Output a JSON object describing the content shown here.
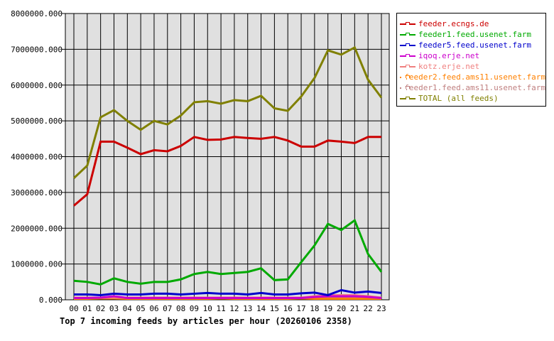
{
  "chart_data": {
    "type": "line",
    "title": "Top 7 incoming feeds by articles per hour (20260106 2358)",
    "categories": [
      "00",
      "01",
      "02",
      "03",
      "04",
      "05",
      "06",
      "07",
      "08",
      "09",
      "10",
      "11",
      "12",
      "13",
      "14",
      "15",
      "16",
      "17",
      "18",
      "19",
      "20",
      "21",
      "22",
      "23"
    ],
    "ylim": [
      0,
      8000000
    ],
    "yticks": [
      "0.000",
      "1000000.000",
      "2000000.000",
      "3000000.000",
      "4000000.000",
      "5000000.000",
      "6000000.000",
      "7000000.000",
      "8000000.000"
    ],
    "grid": true,
    "legend": "right",
    "series": [
      {
        "name": "feeder.ecngs.de",
        "color": "#cc0000",
        "values": [
          2630000,
          2950000,
          4420000,
          4420000,
          4250000,
          4070000,
          4180000,
          4150000,
          4300000,
          4550000,
          4470000,
          4480000,
          4550000,
          4520000,
          4500000,
          4550000,
          4450000,
          4280000,
          4280000,
          4450000,
          4420000,
          4380000,
          4550000,
          4550000
        ]
      },
      {
        "name": "feeder1.feed.usenet.farm",
        "color": "#00aa00",
        "values": [
          530000,
          500000,
          430000,
          600000,
          500000,
          450000,
          500000,
          500000,
          570000,
          720000,
          780000,
          720000,
          750000,
          780000,
          880000,
          550000,
          570000,
          1050000,
          1520000,
          2120000,
          1950000,
          2220000,
          1280000,
          780000
        ]
      },
      {
        "name": "feeder5.feed.usenet.farm",
        "color": "#0000cc",
        "values": [
          150000,
          150000,
          130000,
          170000,
          150000,
          150000,
          170000,
          170000,
          150000,
          170000,
          190000,
          170000,
          170000,
          150000,
          190000,
          150000,
          150000,
          180000,
          200000,
          130000,
          270000,
          200000,
          230000,
          190000
        ]
      },
      {
        "name": "iqoq.erje.net",
        "color": "#cc00cc",
        "values": [
          50000,
          50000,
          60000,
          100000,
          50000,
          50000,
          50000,
          50000,
          50000,
          50000,
          50000,
          50000,
          50000,
          50000,
          50000,
          50000,
          50000,
          50000,
          80000,
          100000,
          100000,
          100000,
          80000,
          50000
        ]
      },
      {
        "name": "kotz.erje.net",
        "color": "#f08080",
        "values": [
          60000,
          60000,
          60000,
          60000,
          60000,
          60000,
          60000,
          60000,
          60000,
          60000,
          60000,
          60000,
          60000,
          60000,
          60000,
          60000,
          60000,
          60000,
          100000,
          130000,
          130000,
          130000,
          100000,
          60000
        ]
      },
      {
        "name": "feeder2.feed.ams11.usenet.farm",
        "color": "#ff8000",
        "values": [
          30000,
          30000,
          40000,
          40000,
          30000,
          30000,
          30000,
          30000,
          30000,
          30000,
          30000,
          40000,
          30000,
          30000,
          30000,
          30000,
          30000,
          40000,
          30000,
          30000,
          30000,
          30000,
          30000,
          30000
        ]
      },
      {
        "name": "feeder1.feed.ams11.usenet.farm",
        "color": "#c08080",
        "values": [
          60000,
          60000,
          60000,
          60000,
          60000,
          60000,
          60000,
          60000,
          60000,
          60000,
          60000,
          60000,
          60000,
          60000,
          60000,
          60000,
          60000,
          60000,
          60000,
          60000,
          60000,
          60000,
          60000,
          60000
        ]
      },
      {
        "name": "TOTAL (all feeds)",
        "color": "#808000",
        "values": [
          3400000,
          3750000,
          5100000,
          5300000,
          5000000,
          4750000,
          5000000,
          4900000,
          5150000,
          5520000,
          5550000,
          5480000,
          5580000,
          5550000,
          5700000,
          5350000,
          5280000,
          5680000,
          6200000,
          6970000,
          6850000,
          7050000,
          6150000,
          5650000
        ]
      }
    ]
  }
}
